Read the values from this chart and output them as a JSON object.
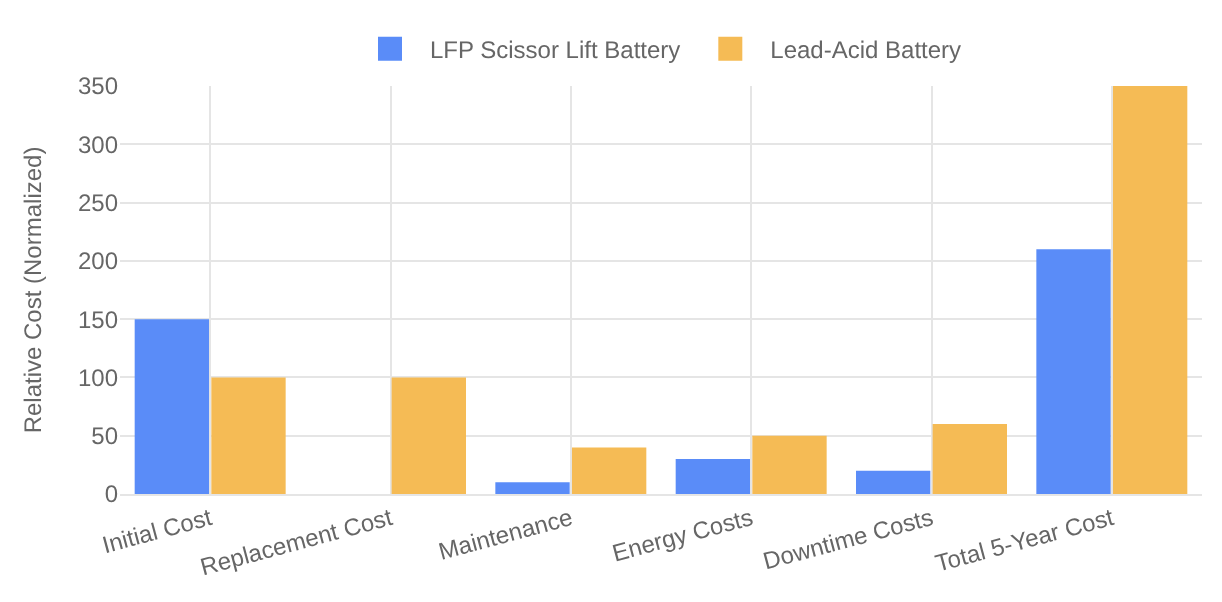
{
  "chart_data": {
    "type": "bar",
    "ylabel": "Relative Cost (Normalized)",
    "categories": [
      "Initial Cost",
      "Replacement Cost",
      "Maintenance",
      "Energy Costs",
      "Downtime Costs",
      "Total 5-Year Cost"
    ],
    "series": [
      {
        "name": "LFP Scissor Lift Battery",
        "color": "#5a8cf8",
        "values": [
          150,
          0,
          10,
          30,
          20,
          210
        ]
      },
      {
        "name": "Lead-Acid Battery",
        "color": "#f5bb55",
        "values": [
          100,
          100,
          40,
          50,
          60,
          350
        ]
      }
    ],
    "ylim": [
      0,
      350
    ],
    "yticks": [
      0,
      50,
      100,
      150,
      200,
      250,
      300,
      350
    ],
    "grid": true,
    "legend": "top"
  }
}
